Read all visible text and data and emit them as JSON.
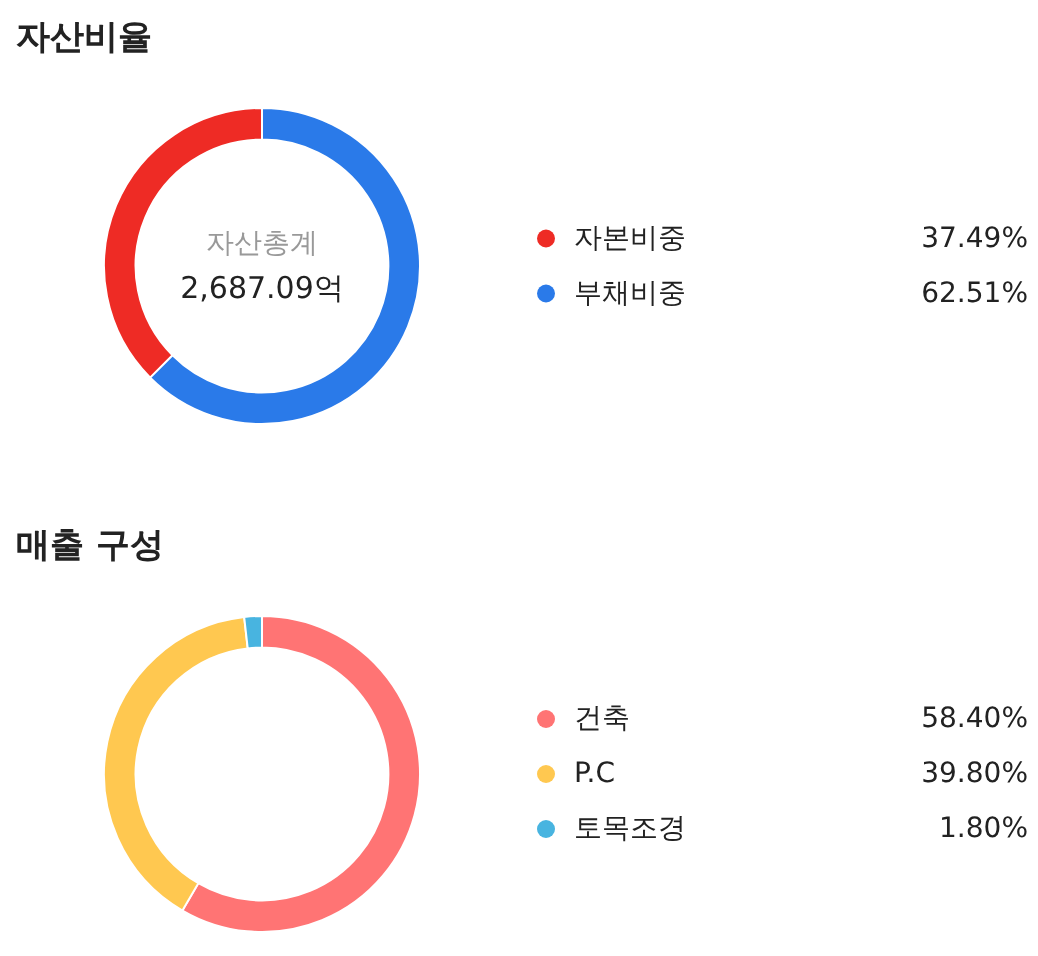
{
  "chart_data": [
    {
      "type": "donut",
      "title": "자산비율",
      "categories": [
        "자본비중",
        "부채비중"
      ],
      "values": [
        37.49,
        62.51
      ],
      "colors": [
        "#ee2b25",
        "#2a7ae9"
      ],
      "value_labels": [
        "37.49%",
        "62.51%"
      ],
      "legend": "right",
      "annotations": [
        "자산총계",
        "2,687.09억"
      ]
    },
    {
      "type": "donut",
      "title": "매출 구성",
      "categories": [
        "건축",
        "P.C",
        "토목조경"
      ],
      "values": [
        58.4,
        39.8,
        1.8
      ],
      "colors": [
        "#ff7474",
        "#ffc850",
        "#48b4e0"
      ],
      "value_labels": [
        "58.40%",
        "39.80%",
        "1.80%"
      ],
      "legend": "right"
    }
  ]
}
